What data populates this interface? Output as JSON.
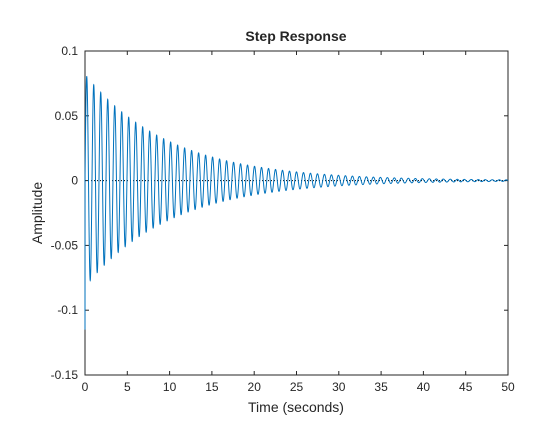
{
  "chart_data": {
    "type": "line",
    "title": "Step Response",
    "xlabel": "Time (seconds)",
    "ylabel": "Amplitude",
    "xlim": [
      0,
      50
    ],
    "ylim": [
      -0.15,
      0.1
    ],
    "xticks": [
      0,
      5,
      10,
      15,
      20,
      25,
      30,
      35,
      40,
      45,
      50
    ],
    "yticks": [
      0.1,
      0.05,
      0,
      -0.05,
      -0.1,
      -0.15
    ],
    "xtick_labels": [
      "0",
      "5",
      "10",
      "15",
      "20",
      "25",
      "30",
      "35",
      "40",
      "45",
      "50"
    ],
    "ytick_labels": [
      "0.1",
      "0.05",
      "0",
      "-0.05",
      "-0.1",
      "-0.15"
    ],
    "grid": false,
    "reference_line": {
      "y": 0,
      "style": "dotted",
      "color": "#000000"
    },
    "series": [
      {
        "color": "#0072bd",
        "signal": {
          "kind": "damped_oscillation",
          "initial_value": -0.115,
          "peak_amplitude": 0.082,
          "frequency_hz": 1.21,
          "decay_rate_per_s": 0.1,
          "start_time": 0,
          "end_time": 50
        }
      }
    ]
  },
  "colors": {
    "axes": "#262626",
    "line": "#0072bd",
    "background": "#ffffff"
  }
}
